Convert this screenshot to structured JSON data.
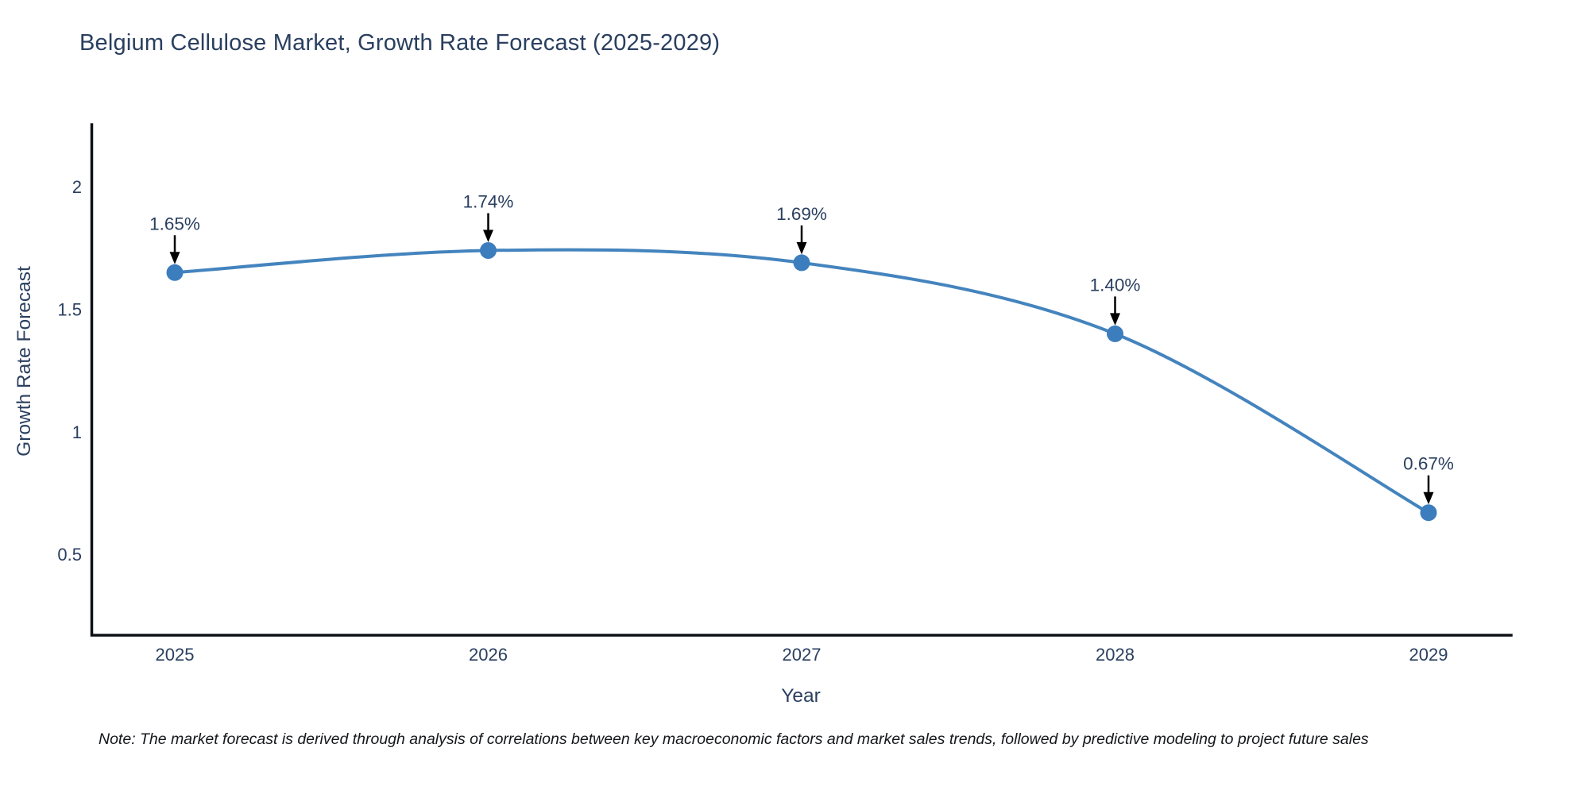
{
  "title": "Belgium Cellulose Market, Growth Rate Forecast (2025-2029)",
  "note": "Note: The market forecast is derived through analysis of correlations between key macroeconomic factors and market sales trends, followed by predictive modeling to project future sales",
  "chart_data": {
    "type": "line",
    "line_shape": "spline",
    "title": "Belgium Cellulose Market, Growth Rate Forecast (2025-2029)",
    "xlabel": "Year",
    "ylabel": "Growth Rate Forecast",
    "x": [
      2025,
      2026,
      2027,
      2028,
      2029
    ],
    "values": [
      1.65,
      1.74,
      1.69,
      1.4,
      0.67
    ],
    "point_labels": [
      "1.65%",
      "1.74%",
      "1.69%",
      "1.40%",
      "0.67%"
    ],
    "xtick_labels": [
      "2025",
      "2026",
      "2027",
      "2028",
      "2029"
    ],
    "ytick_values": [
      0.5,
      1,
      1.5,
      2
    ],
    "ytick_labels": [
      "0.5",
      "1",
      "1.5",
      "2"
    ],
    "ylim": [
      0.17,
      2.26
    ],
    "grid": false,
    "legend": "none",
    "annotations_have_arrows": true,
    "colors": {
      "line": "#4484be",
      "marker": "#3c7dbd",
      "axis_line": "#0e1116",
      "tick_text": "#2a3f5f",
      "annotation_text": "#2a3f5f",
      "annotation_arrow": "#000000",
      "title_text": "#2a3f5f",
      "note_text": "#15171c",
      "background": "#ffffff"
    }
  }
}
